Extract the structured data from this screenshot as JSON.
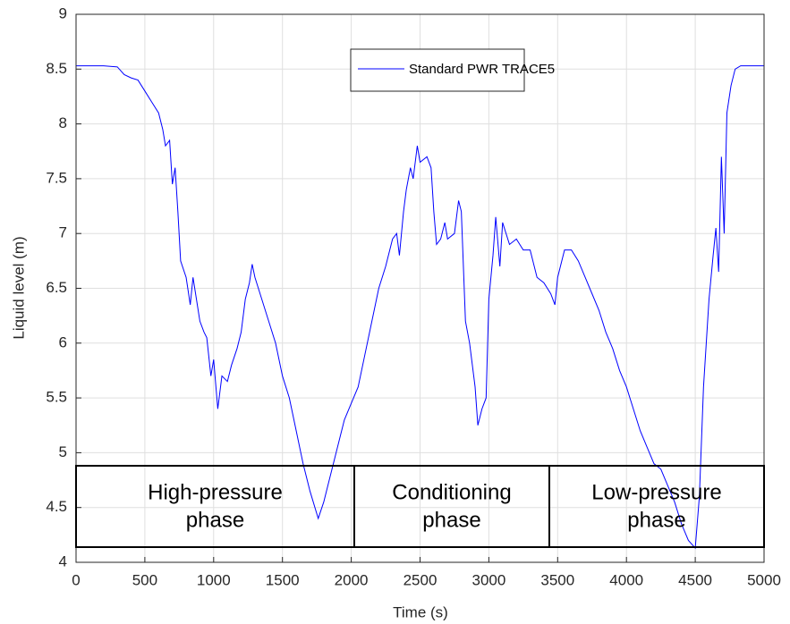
{
  "chart_data": {
    "type": "line",
    "xlabel": "Time (s)",
    "ylabel": "Liquid level (m)",
    "xlim": [
      0,
      5000
    ],
    "ylim": [
      4,
      9
    ],
    "xticks": [
      0,
      500,
      1000,
      1500,
      2000,
      2500,
      3000,
      3500,
      4000,
      4500,
      5000
    ],
    "yticks": [
      4,
      4.5,
      5,
      5.5,
      6,
      6.5,
      7,
      7.5,
      8,
      8.5,
      9
    ],
    "grid": true,
    "legend": "top",
    "x": [
      0,
      100,
      200,
      300,
      350,
      400,
      450,
      500,
      550,
      600,
      630,
      650,
      680,
      700,
      720,
      740,
      760,
      800,
      830,
      850,
      900,
      930,
      950,
      980,
      1000,
      1030,
      1060,
      1100,
      1130,
      1170,
      1200,
      1230,
      1260,
      1280,
      1300,
      1350,
      1400,
      1450,
      1500,
      1550,
      1600,
      1650,
      1700,
      1760,
      1800,
      1850,
      1900,
      1950,
      2000,
      2050,
      2100,
      2150,
      2200,
      2250,
      2300,
      2330,
      2350,
      2380,
      2400,
      2430,
      2450,
      2480,
      2500,
      2550,
      2580,
      2600,
      2620,
      2650,
      2680,
      2700,
      2750,
      2780,
      2800,
      2830,
      2860,
      2900,
      2920,
      2950,
      2980,
      3000,
      3030,
      3050,
      3080,
      3100,
      3150,
      3200,
      3250,
      3300,
      3350,
      3400,
      3450,
      3480,
      3500,
      3550,
      3600,
      3650,
      3700,
      3750,
      3800,
      3850,
      3900,
      3950,
      4000,
      4050,
      4100,
      4150,
      4200,
      4250,
      4300,
      4350,
      4400,
      4450,
      4500,
      4530,
      4560,
      4600,
      4630,
      4650,
      4670,
      4690,
      4710,
      4730,
      4760,
      4790,
      4830,
      5000
    ],
    "series": [
      {
        "name": "Standard PWR TRACE5",
        "color": "#0000ff",
        "values": [
          8.53,
          8.53,
          8.53,
          8.52,
          8.45,
          8.42,
          8.4,
          8.3,
          8.2,
          8.1,
          7.95,
          7.8,
          7.85,
          7.45,
          7.6,
          7.2,
          6.75,
          6.6,
          6.35,
          6.6,
          6.2,
          6.1,
          6.05,
          5.7,
          5.85,
          5.4,
          5.7,
          5.65,
          5.8,
          5.95,
          6.1,
          6.4,
          6.55,
          6.72,
          6.6,
          6.4,
          6.2,
          6.0,
          5.7,
          5.5,
          5.2,
          4.9,
          4.65,
          4.4,
          4.55,
          4.8,
          5.05,
          5.3,
          5.45,
          5.6,
          5.9,
          6.2,
          6.5,
          6.7,
          6.95,
          7.0,
          6.8,
          7.2,
          7.4,
          7.6,
          7.5,
          7.8,
          7.65,
          7.7,
          7.6,
          7.2,
          6.9,
          6.95,
          7.1,
          6.95,
          7.0,
          7.3,
          7.2,
          6.2,
          6.0,
          5.6,
          5.25,
          5.4,
          5.5,
          6.4,
          6.8,
          7.15,
          6.7,
          7.1,
          6.9,
          6.95,
          6.85,
          6.85,
          6.6,
          6.55,
          6.45,
          6.35,
          6.6,
          6.85,
          6.85,
          6.75,
          6.6,
          6.45,
          6.3,
          6.1,
          5.95,
          5.75,
          5.6,
          5.4,
          5.2,
          5.05,
          4.9,
          4.85,
          4.7,
          4.55,
          4.35,
          4.2,
          4.13,
          4.6,
          5.6,
          6.4,
          6.8,
          7.05,
          6.65,
          7.7,
          7.0,
          8.1,
          8.35,
          8.5,
          8.53,
          8.53
        ]
      }
    ],
    "annotations": [
      {
        "lines": [
          "High-pressure",
          "phase"
        ]
      },
      {
        "lines": [
          "Conditioning",
          "phase"
        ]
      },
      {
        "lines": [
          "Low-pressure",
          "phase"
        ]
      }
    ]
  }
}
